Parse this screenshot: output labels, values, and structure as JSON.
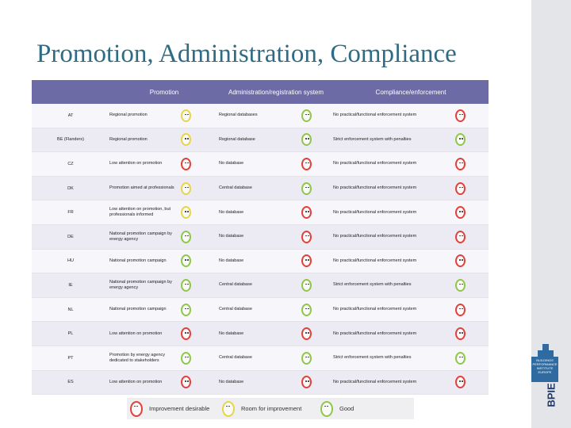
{
  "slide": {
    "title": "Promotion, Administration, Compliance",
    "brand": "BPIE",
    "logo_text": "BUILDINGS PERFORMANCE INSTITUTE EUROPE"
  },
  "table": {
    "headers": [
      "",
      "Promotion",
      "Administration/registration system",
      "Compliance/enforcement"
    ],
    "rows": [
      {
        "country": "AT",
        "promotion": "Regional promotion",
        "promotion_rating": "yellow",
        "admin": "Regional databases",
        "admin_rating": "green",
        "compliance": "No practical/functional enforcement system",
        "compliance_rating": "red"
      },
      {
        "country": "BE (Flanders)",
        "promotion": "Regional promotion",
        "promotion_rating": "yellow",
        "admin": "Regional database",
        "admin_rating": "green",
        "compliance": "Strict enforcement system with penalties",
        "compliance_rating": "green"
      },
      {
        "country": "CZ",
        "promotion": "Low attention on promotion",
        "promotion_rating": "red",
        "admin": "No database",
        "admin_rating": "red",
        "compliance": "No practical/functional enforcement system",
        "compliance_rating": "red"
      },
      {
        "country": "DK",
        "promotion": "Promotion aimed at professionals",
        "promotion_rating": "yellow",
        "admin": "Central database",
        "admin_rating": "green",
        "compliance": "No practical/functional enforcement system",
        "compliance_rating": "red"
      },
      {
        "country": "FR",
        "promotion": "Low attention on promotion, but professionals informed",
        "promotion_rating": "yellow",
        "admin": "No database",
        "admin_rating": "red",
        "compliance": "No practical/functional enforcement system",
        "compliance_rating": "red"
      },
      {
        "country": "DE",
        "promotion": "National promotion campaign by energy agency",
        "promotion_rating": "green",
        "admin": "No database",
        "admin_rating": "red",
        "compliance": "No practical/functional enforcement system",
        "compliance_rating": "red"
      },
      {
        "country": "HU",
        "promotion": "National promotion campaign",
        "promotion_rating": "green",
        "admin": "No database",
        "admin_rating": "red",
        "compliance": "No practical/functional enforcement system",
        "compliance_rating": "red"
      },
      {
        "country": "IE",
        "promotion": "National promotion campaign by energy agency",
        "promotion_rating": "green",
        "admin": "Central database",
        "admin_rating": "green",
        "compliance": "Strict enforcement system with penalties",
        "compliance_rating": "green"
      },
      {
        "country": "NL",
        "promotion": "National promotion campaign",
        "promotion_rating": "green",
        "admin": "Central database",
        "admin_rating": "green",
        "compliance": "No practical/functional enforcement system",
        "compliance_rating": "red"
      },
      {
        "country": "PL",
        "promotion": "Low attention on promotion",
        "promotion_rating": "red",
        "admin": "No database",
        "admin_rating": "red",
        "compliance": "No practical/functional enforcement system",
        "compliance_rating": "red"
      },
      {
        "country": "PT",
        "promotion": "Promotion by energy agency dedicated to stakeholders",
        "promotion_rating": "green",
        "admin": "Central database",
        "admin_rating": "green",
        "compliance": "Strict enforcement system with penalties",
        "compliance_rating": "green"
      },
      {
        "country": "ES",
        "promotion": "Low attention on promotion",
        "promotion_rating": "red",
        "admin": "No database",
        "admin_rating": "red",
        "compliance": "No practical/functional enforcement system",
        "compliance_rating": "red"
      }
    ]
  },
  "legend": [
    {
      "rating": "red",
      "label": "Improvement desirable"
    },
    {
      "rating": "yellow",
      "label": "Room for improvement"
    },
    {
      "rating": "green",
      "label": "Good"
    }
  ],
  "colors": {
    "header_bg": "#6c6ba6",
    "title": "#2e6b84",
    "red": "#e2403a",
    "yellow": "#e7d548",
    "green": "#8fc748"
  }
}
